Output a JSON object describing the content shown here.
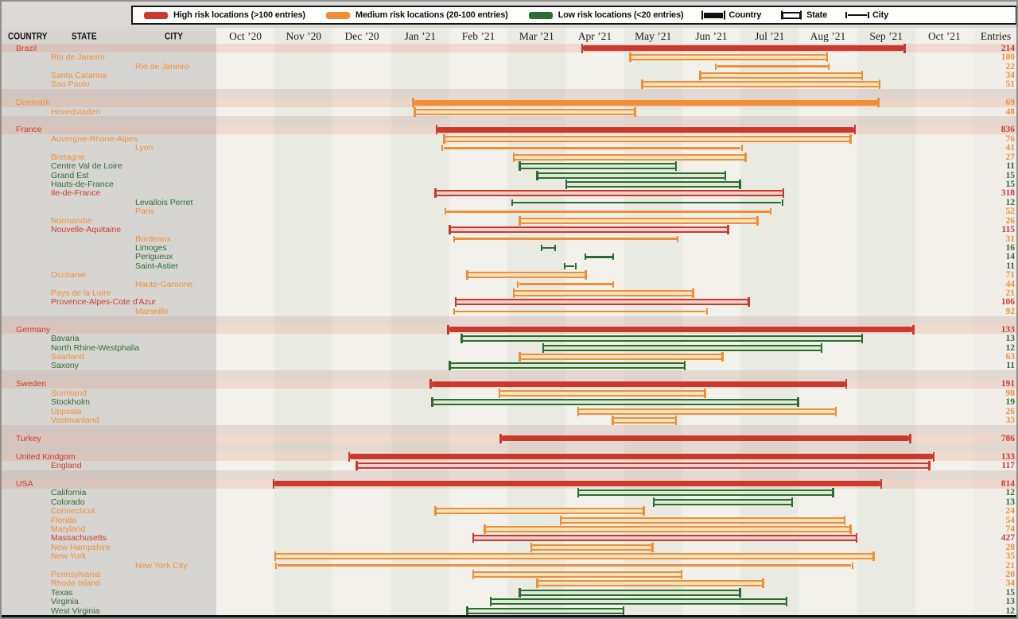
{
  "legend": {
    "risk_items": [
      {
        "label": "High risk locations (>100 entries)",
        "risk": "high"
      },
      {
        "label": "Medium risk locations (20-100 entries)",
        "risk": "medium"
      },
      {
        "label": "Low risk locations (<20 entries)",
        "risk": "low"
      }
    ],
    "marker_items": [
      {
        "label": "Country",
        "level": "country"
      },
      {
        "label": "State",
        "level": "state"
      },
      {
        "label": "City",
        "level": "city"
      }
    ]
  },
  "header": {
    "country": "COUNTRY",
    "state": "STATE",
    "city": "CITY",
    "entries": "Entries"
  },
  "colors": {
    "high": "#cb392e",
    "medium": "#ef8e35",
    "low": "#2e6b33",
    "high_fill": "#f3d0c8",
    "medium_fill": "#fce3c0",
    "low_fill": "#dcebd2",
    "country_row_band": "rgba(228,138,104,0.22)",
    "gap_band": "rgba(190,158,150,0.28)"
  },
  "chart_data": {
    "type": "gantt",
    "x_months": [
      "Oct ’20",
      "Nov ’20",
      "Dec ’20",
      "Jan ’21",
      "Feb ’21",
      "Mar ’21",
      "Apr ’21",
      "May ’21",
      "Jun ’21",
      "Jul ’21",
      "Aug ’21",
      "Sep ’21",
      "Oct ’21"
    ],
    "x_unit": "month index from Oct 2020",
    "groups": [
      {
        "country": "Brazil",
        "rows": [
          {
            "label": "Brazil",
            "level": "country",
            "risk": "high",
            "start": 6.3,
            "end": 11.8,
            "entries": 214
          },
          {
            "label": "Rio de Janeiro",
            "level": "state",
            "risk": "medium",
            "start": 7.1,
            "end": 10.5,
            "entries": 100
          },
          {
            "label": "Rio de Janeiro",
            "level": "city",
            "risk": "medium",
            "start": 8.6,
            "end": 10.5,
            "entries": 22
          },
          {
            "label": "Santa Catarina",
            "level": "state",
            "risk": "medium",
            "start": 8.3,
            "end": 11.1,
            "entries": 34
          },
          {
            "label": "Sao Paulo",
            "level": "state",
            "risk": "medium",
            "start": 7.3,
            "end": 11.4,
            "entries": 51
          }
        ]
      },
      {
        "country": "Denmark",
        "rows": [
          {
            "label": "Denmark",
            "level": "country",
            "risk": "medium",
            "start": 3.4,
            "end": 11.35,
            "entries": 69
          },
          {
            "label": "Hovedstaden",
            "level": "state",
            "risk": "medium",
            "start": 3.4,
            "end": 7.2,
            "entries": 48
          }
        ]
      },
      {
        "country": "France",
        "rows": [
          {
            "label": "France",
            "level": "country",
            "risk": "high",
            "start": 3.8,
            "end": 10.95,
            "entries": 836
          },
          {
            "label": "Auvergne-Rhone-Alpes",
            "level": "state",
            "risk": "medium",
            "start": 3.9,
            "end": 10.9,
            "entries": 76
          },
          {
            "label": "Lyon",
            "level": "city",
            "risk": "medium",
            "start": 3.9,
            "end": 9.0,
            "entries": 41
          },
          {
            "label": "Bretagne",
            "level": "state",
            "risk": "medium",
            "start": 5.1,
            "end": 9.1,
            "entries": 27
          },
          {
            "label": "Centre Val de Loire",
            "level": "state",
            "risk": "low",
            "start": 5.2,
            "end": 7.9,
            "entries": 11
          },
          {
            "label": "Grand Est",
            "level": "state",
            "risk": "low",
            "start": 5.5,
            "end": 8.75,
            "entries": 15
          },
          {
            "label": "Hauts-de-France",
            "level": "state",
            "risk": "low",
            "start": 6.0,
            "end": 9.0,
            "entries": 15
          },
          {
            "label": "Ile-de-France",
            "level": "state",
            "risk": "high",
            "start": 3.75,
            "end": 9.75,
            "entries": 318
          },
          {
            "label": "Levallois Perret",
            "level": "city",
            "risk": "low",
            "start": 5.1,
            "end": 9.7,
            "entries": 12
          },
          {
            "label": "Paris",
            "level": "city",
            "risk": "medium",
            "start": 3.95,
            "end": 9.5,
            "entries": 52
          },
          {
            "label": "Normandie",
            "level": "state",
            "risk": "medium",
            "start": 5.2,
            "end": 9.3,
            "entries": 26
          },
          {
            "label": "Nouvelle-Aquitaine",
            "level": "state",
            "risk": "high",
            "start": 4.0,
            "end": 8.8,
            "entries": 115
          },
          {
            "label": "Bordeaux",
            "level": "city",
            "risk": "medium",
            "start": 4.1,
            "end": 7.9,
            "entries": 31
          },
          {
            "label": "Limoges",
            "level": "city",
            "risk": "low",
            "start": 5.6,
            "end": 5.8,
            "entries": 16
          },
          {
            "label": "Perigueux",
            "level": "city",
            "risk": "low",
            "start": 6.35,
            "end": 6.8,
            "entries": 14
          },
          {
            "label": "Saint-Astier",
            "level": "city",
            "risk": "low",
            "start": 6.0,
            "end": 6.15,
            "entries": 11
          },
          {
            "label": "Occitanie",
            "level": "state",
            "risk": "medium",
            "start": 4.3,
            "end": 6.35,
            "entries": 71
          },
          {
            "label": "Haute-Garonne",
            "level": "city",
            "risk": "medium",
            "start": 5.2,
            "end": 6.8,
            "entries": 44
          },
          {
            "label": "Pays de la Loire",
            "level": "state",
            "risk": "medium",
            "start": 5.1,
            "end": 8.2,
            "entries": 21
          },
          {
            "label": "Provence-Alpes-Cote d'Azur",
            "level": "state",
            "risk": "high",
            "start": 4.1,
            "end": 9.15,
            "entries": 106
          },
          {
            "label": "Marseille",
            "level": "city",
            "risk": "medium",
            "start": 4.1,
            "end": 8.4,
            "entries": 92
          }
        ]
      },
      {
        "country": "Germany",
        "rows": [
          {
            "label": "Germany",
            "level": "country",
            "risk": "high",
            "start": 4.0,
            "end": 11.95,
            "entries": 133
          },
          {
            "label": "Bavaria",
            "level": "state",
            "risk": "low",
            "start": 4.2,
            "end": 11.1,
            "entries": 13
          },
          {
            "label": "North Rhine-Westphalia",
            "level": "state",
            "risk": "low",
            "start": 5.6,
            "end": 10.4,
            "entries": 12
          },
          {
            "label": "Saarland",
            "level": "state",
            "risk": "medium",
            "start": 5.2,
            "end": 8.7,
            "entries": 63
          },
          {
            "label": "Saxony",
            "level": "state",
            "risk": "low",
            "start": 4.0,
            "end": 8.05,
            "entries": 11
          }
        ]
      },
      {
        "country": "Sweden",
        "rows": [
          {
            "label": "Sweden",
            "level": "country",
            "risk": "high",
            "start": 3.7,
            "end": 10.8,
            "entries": 191
          },
          {
            "label": "Sormland",
            "level": "state",
            "risk": "medium",
            "start": 4.85,
            "end": 8.4,
            "entries": 98
          },
          {
            "label": "Stockholm",
            "level": "state",
            "risk": "low",
            "start": 3.7,
            "end": 10.0,
            "entries": 19
          },
          {
            "label": "Uppsala",
            "level": "state",
            "risk": "medium",
            "start": 6.2,
            "end": 10.65,
            "entries": 26
          },
          {
            "label": "Vastmanland",
            "level": "state",
            "risk": "medium",
            "start": 6.8,
            "end": 7.9,
            "entries": 33
          }
        ]
      },
      {
        "country": "Turkey",
        "rows": [
          {
            "label": "Turkey",
            "level": "country",
            "risk": "high",
            "start": 4.9,
            "end": 11.9,
            "entries": 786
          }
        ]
      },
      {
        "country": "United Kindgom",
        "rows": [
          {
            "label": "United Kindgom",
            "level": "country",
            "risk": "high",
            "start": 2.3,
            "end": 12.3,
            "entries": 133
          },
          {
            "label": "England",
            "level": "state",
            "risk": "high",
            "start": 2.4,
            "end": 12.25,
            "entries": 117
          }
        ]
      },
      {
        "country": "USA",
        "rows": [
          {
            "label": "USA",
            "level": "country",
            "risk": "high",
            "start": 1.0,
            "end": 11.4,
            "entries": 814
          },
          {
            "label": "California",
            "level": "state",
            "risk": "low",
            "start": 6.2,
            "end": 10.6,
            "entries": 12
          },
          {
            "label": "Colorado",
            "level": "state",
            "risk": "low",
            "start": 7.5,
            "end": 9.9,
            "entries": 13
          },
          {
            "label": "Connecticut",
            "level": "state",
            "risk": "medium",
            "start": 3.75,
            "end": 7.35,
            "entries": 24
          },
          {
            "label": "Florida",
            "level": "state",
            "risk": "medium",
            "start": 5.9,
            "end": 10.8,
            "entries": 54
          },
          {
            "label": "Maryland",
            "level": "state",
            "risk": "medium",
            "start": 4.6,
            "end": 10.9,
            "entries": 74
          },
          {
            "label": "Massachusetts",
            "level": "state",
            "risk": "high",
            "start": 4.4,
            "end": 11.0,
            "entries": 427
          },
          {
            "label": "New Hampshire",
            "level": "state",
            "risk": "medium",
            "start": 5.4,
            "end": 7.5,
            "entries": 28
          },
          {
            "label": "New York",
            "level": "state",
            "risk": "medium",
            "start": 1.0,
            "end": 11.3,
            "entries": 35
          },
          {
            "label": "New York City",
            "level": "city",
            "risk": "medium",
            "start": 1.05,
            "end": 10.9,
            "entries": 21
          },
          {
            "label": "Pennsylvania",
            "level": "state",
            "risk": "medium",
            "start": 4.4,
            "end": 8.0,
            "entries": 20
          },
          {
            "label": "Rhode Island",
            "level": "state",
            "risk": "medium",
            "start": 5.5,
            "end": 9.4,
            "entries": 34
          },
          {
            "label": "Texas",
            "level": "state",
            "risk": "low",
            "start": 5.2,
            "end": 9.0,
            "entries": 15
          },
          {
            "label": "Virginia",
            "level": "state",
            "risk": "low",
            "start": 4.7,
            "end": 9.8,
            "entries": 13
          },
          {
            "label": "West Virginia",
            "level": "state",
            "risk": "low",
            "start": 4.3,
            "end": 7.0,
            "entries": 12
          }
        ]
      }
    ]
  }
}
